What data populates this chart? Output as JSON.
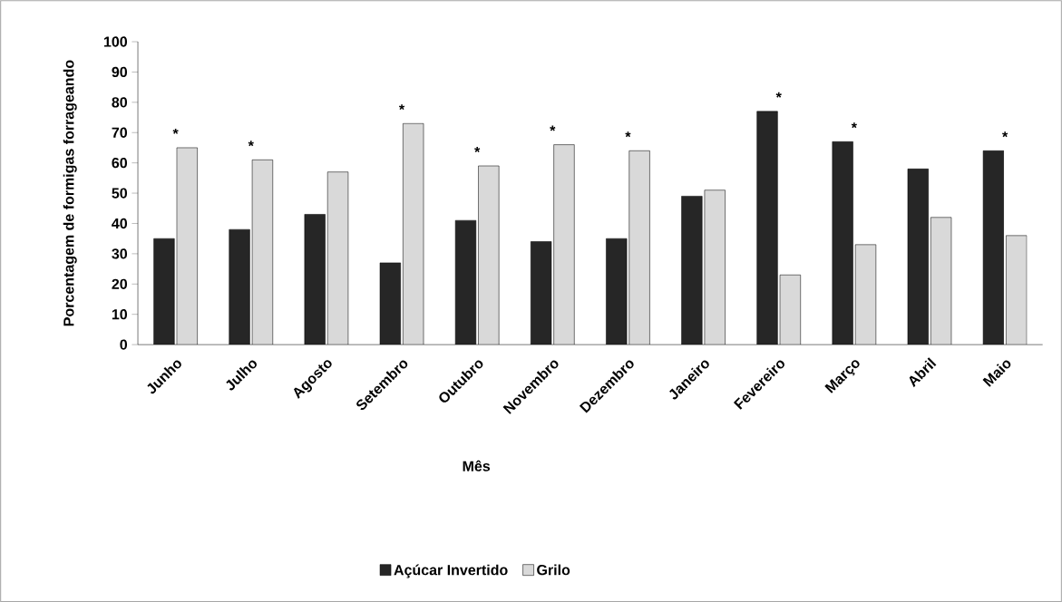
{
  "chart_data": {
    "type": "bar",
    "xlabel": "Mês",
    "ylabel": "Porcentagem de formigas forrageando",
    "categories": [
      "Junho",
      "Julho",
      "Agosto",
      "Setembro",
      "Outubro",
      "Novembro",
      "Dezembro",
      "Janeiro",
      "Fevereiro",
      "Março",
      "Abril",
      "Maio"
    ],
    "series": [
      {
        "name": "Açúcar Invertido",
        "color": "#262626",
        "values": [
          35,
          38,
          43,
          27,
          41,
          34,
          35,
          49,
          77,
          67,
          58,
          64
        ]
      },
      {
        "name": "Grilo",
        "color": "#d9d9d9",
        "values": [
          65,
          61,
          57,
          73,
          59,
          66,
          64,
          51,
          23,
          33,
          42,
          36
        ]
      }
    ],
    "ylim": [
      0,
      100
    ],
    "yticks": [
      0,
      10,
      20,
      30,
      40,
      50,
      60,
      70,
      80,
      90,
      100
    ],
    "legend": "bottom",
    "annotations": [
      {
        "text": "*",
        "x": "Junho",
        "y": 65
      },
      {
        "text": "*",
        "x": "Julho",
        "y": 61
      },
      {
        "text": "*",
        "x": "Setembro",
        "y": 73
      },
      {
        "text": "*",
        "x": "Outubro",
        "y": 59
      },
      {
        "text": "*",
        "x": "Novembro",
        "y": 66
      },
      {
        "text": "*",
        "x": "Dezembro",
        "y": 64
      },
      {
        "text": "*",
        "x": "Fevereiro",
        "y": 77
      },
      {
        "text": "*",
        "x": "Março",
        "y": 67
      },
      {
        "text": "*",
        "x": "Maio",
        "y": 64
      }
    ]
  }
}
